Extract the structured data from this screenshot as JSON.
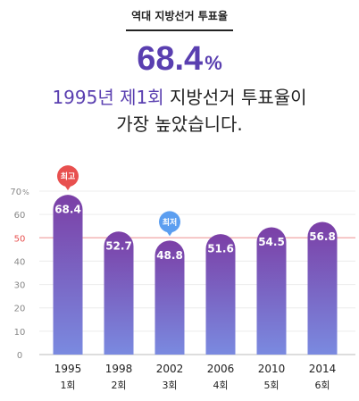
{
  "header": {
    "label": "역대 지방선거 투표율"
  },
  "highlight": {
    "value": "68.4",
    "unit": "%"
  },
  "headline": {
    "line1_accent": "1995년 제1회",
    "line1_rest": " 지방선거 투표율이",
    "line2": "가장 높았습니다."
  },
  "chart_data": {
    "type": "bar",
    "categories": [
      "1995",
      "1998",
      "2002",
      "2006",
      "2010",
      "2014"
    ],
    "sub_labels": [
      "1회",
      "2회",
      "3회",
      "4회",
      "5회",
      "6회"
    ],
    "values": [
      68.4,
      52.7,
      48.8,
      51.6,
      54.5,
      56.8
    ],
    "value_labels": [
      "68.4",
      "52.7",
      "48.8",
      "51.6",
      "54.5",
      "56.8"
    ],
    "ylim": [
      0,
      70
    ],
    "yticks": [
      0,
      10,
      20,
      30,
      40,
      50,
      60,
      70
    ],
    "ytick_labels": [
      "0",
      "10",
      "20",
      "30",
      "40",
      "50",
      "60",
      "70"
    ],
    "y_unit": "%",
    "reference_line": {
      "value": 50,
      "label": "50",
      "color": "#f3b4b4",
      "label_color": "#e8504f"
    },
    "badges": [
      {
        "index": 0,
        "text": "최고",
        "color": "#e8504f"
      },
      {
        "index": 2,
        "text": "최저",
        "color": "#5b9ef0"
      }
    ],
    "colors": {
      "bar_top": "#7b3fa6",
      "bar_bottom": "#7a8ae0",
      "grid": "#ececec",
      "axis": "#bbbbbb"
    },
    "grid": true
  }
}
